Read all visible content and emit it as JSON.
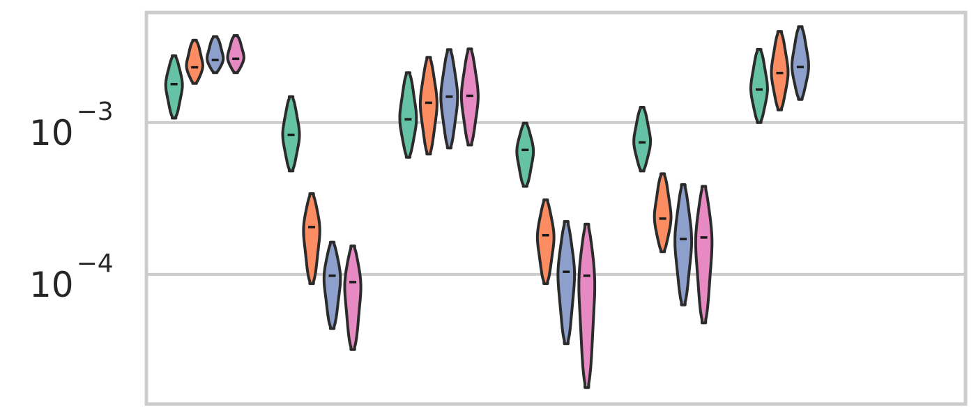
{
  "chart_data": {
    "type": "violin",
    "title": "",
    "xlabel": "",
    "ylabel": "",
    "y_scale": "log",
    "ylim": [
      1.4e-05,
      0.0053
    ],
    "grid": "horizontal",
    "legend": "none",
    "y_ticks": [
      {
        "value": 0.001,
        "label": "10",
        "exponent": "−3"
      },
      {
        "value": 0.0001,
        "label": "10",
        "exponent": "−4"
      }
    ],
    "colors": [
      "#66c2a5",
      "#fc8d62",
      "#8da0cb",
      "#e78ac3"
    ],
    "groups": [
      {
        "violins": [
          {
            "series": 0,
            "min": 0.00107,
            "max": 0.00275,
            "median": 0.00179
          },
          {
            "series": 1,
            "min": 0.00181,
            "max": 0.00348,
            "median": 0.00231
          },
          {
            "series": 2,
            "min": 0.00213,
            "max": 0.00368,
            "median": 0.00258
          },
          {
            "series": 3,
            "min": 0.00213,
            "max": 0.00374,
            "median": 0.00263
          }
        ]
      },
      {
        "violins": [
          {
            "series": 0,
            "min": 0.00048,
            "max": 0.00148,
            "median": 0.00083
          },
          {
            "series": 1,
            "min": 8.7e-05,
            "max": 0.00034,
            "median": 0.000205
          },
          {
            "series": 2,
            "min": 4.4e-05,
            "max": 0.000163,
            "median": 9.8e-05
          },
          {
            "series": 3,
            "min": 3.2e-05,
            "max": 0.000154,
            "median": 8.9e-05
          }
        ]
      },
      {
        "violins": [
          {
            "series": 0,
            "min": 0.00059,
            "max": 0.00213,
            "median": 0.00105
          },
          {
            "series": 1,
            "min": 0.00062,
            "max": 0.00269,
            "median": 0.00135
          },
          {
            "series": 2,
            "min": 0.00068,
            "max": 0.00302,
            "median": 0.00148
          },
          {
            "series": 3,
            "min": 0.00071,
            "max": 0.00305,
            "median": 0.0015
          }
        ]
      },
      {
        "violins": [
          {
            "series": 0,
            "min": 0.00038,
            "max": 0.00099,
            "median": 0.00066
          },
          {
            "series": 1,
            "min": 8.7e-05,
            "max": 0.00031,
            "median": 0.000181
          },
          {
            "series": 2,
            "min": 3.5e-05,
            "max": 0.000223,
            "median": 0.000104
          },
          {
            "series": 3,
            "min": 1.8e-05,
            "max": 0.000214,
            "median": 9.8e-05
          }
        ]
      },
      {
        "violins": [
          {
            "series": 0,
            "min": 0.00048,
            "max": 0.00126,
            "median": 0.00074
          },
          {
            "series": 1,
            "min": 0.000141,
            "max": 0.00046,
            "median": 0.000233
          },
          {
            "series": 2,
            "min": 6.3e-05,
            "max": 0.00039,
            "median": 0.000171
          },
          {
            "series": 3,
            "min": 4.8e-05,
            "max": 0.00038,
            "median": 0.000175
          }
        ]
      },
      {
        "violins": [
          {
            "series": 0,
            "min": 0.001,
            "max": 0.00303,
            "median": 0.00165
          },
          {
            "series": 1,
            "min": 0.00121,
            "max": 0.00398,
            "median": 0.00212
          },
          {
            "series": 2,
            "min": 0.00142,
            "max": 0.00428,
            "median": 0.00232
          }
        ]
      },
      {
        "violins": []
      }
    ]
  }
}
